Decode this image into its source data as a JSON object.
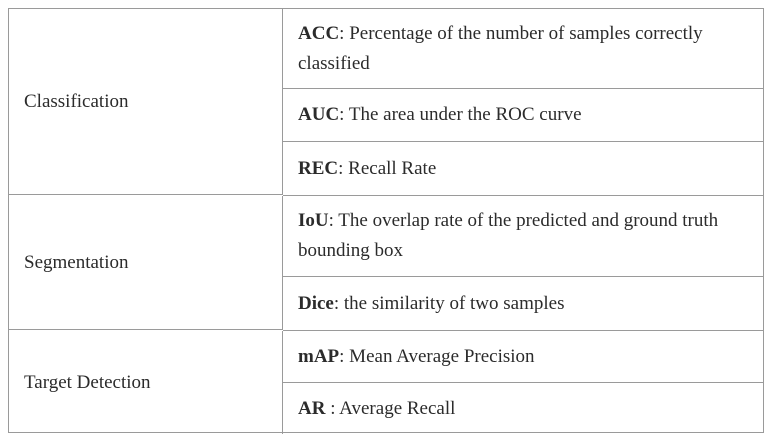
{
  "groups": [
    {
      "category": "Classification",
      "metrics": [
        {
          "abbr": "ACC",
          "desc": ": Percentage of the number of samples correctly classified"
        },
        {
          "abbr": "AUC",
          "desc": ": The area under the ROC curve"
        },
        {
          "abbr": "REC",
          "desc": ": Recall Rate"
        }
      ]
    },
    {
      "category": "Segmentation",
      "metrics": [
        {
          "abbr": "IoU",
          "desc": ": The overlap rate of the predicted and ground truth bounding box"
        },
        {
          "abbr": "Dice",
          "desc": ": the similarity of two samples"
        }
      ]
    },
    {
      "category": "Target Detection",
      "metrics": [
        {
          "abbr": "mAP",
          "desc": ": Mean Average Precision"
        },
        {
          "abbr": "AR",
          "desc": " : Average Recall"
        }
      ]
    }
  ]
}
